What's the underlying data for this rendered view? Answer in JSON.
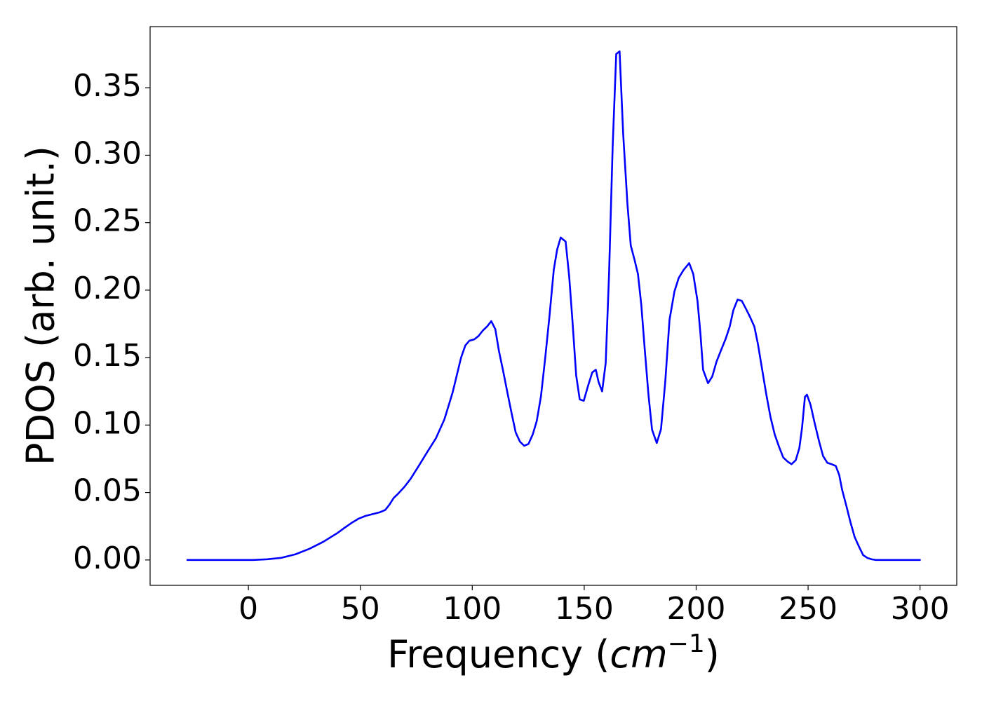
{
  "chart_data": {
    "type": "line",
    "xlabel": [
      "Frequency (",
      "cm",
      "−1",
      ")"
    ],
    "ylabel": "PDOS (arb. unit.)",
    "color": "#0000ff",
    "xlim": [
      -43.9,
      316.4
    ],
    "ylim": [
      -0.0188,
      0.3953
    ],
    "xticks": [
      0,
      50,
      100,
      150,
      200,
      250,
      300
    ],
    "yticks": [
      {
        "value": 0,
        "label": "0.00"
      },
      0.05,
      {
        "value": 0.1,
        "label": "0.10"
      },
      0.15,
      {
        "value": 0.2,
        "label": "0.20"
      },
      0.25,
      {
        "value": 0.3,
        "label": "0.30"
      },
      0.35
    ],
    "x": [
      -27.6,
      2.2,
      8.5,
      14.7,
      21.0,
      27.3,
      33.5,
      39.8,
      43.0,
      46.1,
      49.2,
      52.4,
      55.5,
      58.6,
      61.1,
      63.0,
      64.9,
      66.8,
      69.6,
      72.4,
      76.2,
      79.9,
      81.8,
      83.7,
      85.6,
      87.5,
      89.3,
      91.2,
      93.1,
      95.0,
      96.9,
      98.7,
      100.9,
      102.8,
      104.7,
      106.6,
      108.5,
      110.3,
      111.9,
      113.8,
      115.7,
      117.6,
      119.4,
      121.3,
      123.2,
      125.1,
      127.0,
      128.8,
      130.7,
      132.6,
      134.5,
      136.4,
      137.9,
      139.5,
      141.7,
      143.3,
      144.8,
      146.4,
      148.0,
      149.8,
      151.7,
      153.6,
      155.2,
      156.4,
      158.0,
      159.6,
      161.1,
      162.7,
      164.3,
      165.8,
      167.4,
      169.3,
      170.8,
      172.4,
      174.0,
      175.5,
      177.1,
      178.7,
      180.3,
      182.4,
      184.3,
      186.2,
      188.1,
      190.3,
      192.2,
      194.4,
      196.9,
      198.7,
      200.6,
      201.9,
      203.1,
      205.3,
      207.2,
      209.1,
      211.0,
      213.2,
      215.0,
      216.6,
      218.5,
      220.4,
      222.3,
      224.1,
      226.0,
      227.6,
      229.5,
      231.3,
      233.2,
      235.1,
      237.0,
      238.9,
      240.8,
      242.6,
      244.5,
      246.1,
      247.3,
      248.6,
      249.5,
      251.1,
      253.0,
      254.9,
      256.7,
      258.6,
      260.5,
      262.4,
      263.9,
      265.2,
      267.1,
      269.0,
      270.8,
      272.7,
      274.6,
      276.5,
      278.4,
      280.3,
      300.3
    ],
    "values": [
      0,
      0,
      0.0005,
      0.0016,
      0.0042,
      0.0083,
      0.0135,
      0.02,
      0.0239,
      0.0275,
      0.0306,
      0.0327,
      0.034,
      0.0353,
      0.037,
      0.041,
      0.046,
      0.049,
      0.054,
      0.06,
      0.07,
      0.08,
      0.085,
      0.09,
      0.097,
      0.104,
      0.1137,
      0.124,
      0.137,
      0.15,
      0.159,
      0.1625,
      0.1635,
      0.166,
      0.17,
      0.173,
      0.177,
      0.171,
      0.155,
      0.14,
      0.124,
      0.1085,
      0.0945,
      0.0877,
      0.0846,
      0.086,
      0.093,
      0.103,
      0.1215,
      0.15,
      0.181,
      0.215,
      0.23,
      0.239,
      0.236,
      0.21,
      0.176,
      0.137,
      0.119,
      0.118,
      0.129,
      0.139,
      0.141,
      0.132,
      0.125,
      0.146,
      0.212,
      0.306,
      0.375,
      0.377,
      0.316,
      0.264,
      0.233,
      0.223,
      0.212,
      0.189,
      0.155,
      0.1225,
      0.0966,
      0.0867,
      0.097,
      0.132,
      0.178,
      0.199,
      0.209,
      0.215,
      0.22,
      0.212,
      0.192,
      0.168,
      0.141,
      0.131,
      0.136,
      0.147,
      0.155,
      0.164,
      0.173,
      0.185,
      0.193,
      0.192,
      0.186,
      0.18,
      0.173,
      0.16,
      0.141,
      0.123,
      0.106,
      0.093,
      0.084,
      0.076,
      0.073,
      0.071,
      0.074,
      0.083,
      0.098,
      0.121,
      0.1225,
      0.115,
      0.101,
      0.088,
      0.077,
      0.072,
      0.071,
      0.0696,
      0.063,
      0.052,
      0.04,
      0.0275,
      0.017,
      0.01,
      0.0036,
      0.0015,
      0.0005,
      0,
      0
    ]
  }
}
